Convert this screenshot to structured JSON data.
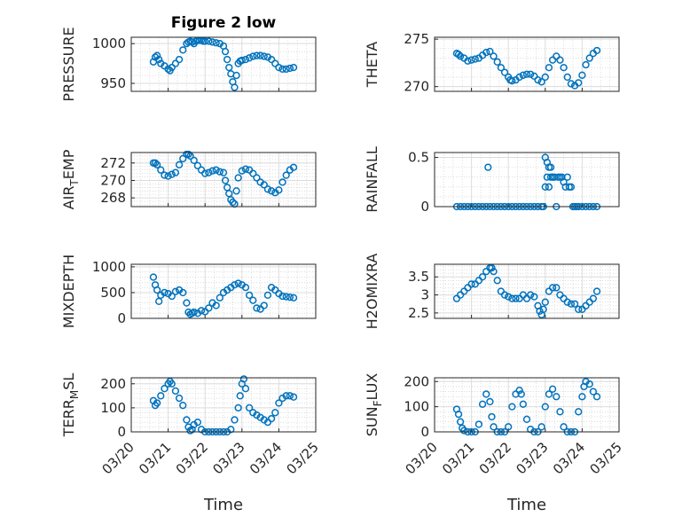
{
  "figure": {
    "title": "Figure 2 low",
    "xlabel": "Time",
    "marker_color": "#0072BD",
    "grid": true,
    "x_range": [
      "03/20",
      "03/25"
    ],
    "x_ticks": [
      "03/20",
      "03/21",
      "03/22",
      "03/23",
      "03/24",
      "03/25"
    ]
  },
  "chart_data": [
    {
      "type": "scatter",
      "ylabel": "PRESSURE",
      "title": "Figure 2 low",
      "ylim": [
        940,
        1008
      ],
      "yticks": [
        950,
        1000
      ],
      "x": [
        0.6,
        0.65,
        0.7,
        0.75,
        0.8,
        0.9,
        1.0,
        1.05,
        1.1,
        1.2,
        1.3,
        1.4,
        1.5,
        1.55,
        1.6,
        1.65,
        1.7,
        1.75,
        1.8,
        1.85,
        1.9,
        1.95,
        2.0,
        2.1,
        2.2,
        2.3,
        2.4,
        2.5,
        2.55,
        2.6,
        2.65,
        2.7,
        2.75,
        2.8,
        2.85,
        2.9,
        2.95,
        3.0,
        3.1,
        3.2,
        3.3,
        3.4,
        3.5,
        3.6,
        3.7,
        3.8,
        3.9,
        4.0,
        4.1,
        4.2,
        4.3,
        4.4
      ],
      "y": [
        977,
        983,
        985,
        980,
        975,
        972,
        968,
        966,
        970,
        975,
        980,
        992,
        1000,
        1002,
        1003,
        1002,
        1000,
        1003,
        1004,
        1004,
        1004,
        1003,
        1003,
        1003,
        1002,
        1001,
        1000,
        997,
        990,
        980,
        970,
        962,
        952,
        945,
        960,
        975,
        978,
        979,
        980,
        982,
        984,
        985,
        985,
        984,
        983,
        980,
        975,
        970,
        968,
        968,
        969,
        970
      ]
    },
    {
      "type": "scatter",
      "ylabel": "THETA",
      "ylim": [
        269.5,
        275.2
      ],
      "yticks": [
        270,
        275
      ],
      "x": [
        0.6,
        0.65,
        0.7,
        0.8,
        0.9,
        1.0,
        1.1,
        1.2,
        1.3,
        1.4,
        1.5,
        1.6,
        1.7,
        1.8,
        1.9,
        2.0,
        2.05,
        2.1,
        2.2,
        2.3,
        2.4,
        2.5,
        2.6,
        2.7,
        2.8,
        2.9,
        3.0,
        3.1,
        3.2,
        3.3,
        3.4,
        3.5,
        3.6,
        3.7,
        3.8,
        3.9,
        4.0,
        4.1,
        4.2,
        4.3,
        4.4
      ],
      "y": [
        273.5,
        273.4,
        273.2,
        273.0,
        272.7,
        272.8,
        272.9,
        273.0,
        273.3,
        273.6,
        273.7,
        273.2,
        272.6,
        272.0,
        271.5,
        271.0,
        270.7,
        270.6,
        270.7,
        271.0,
        271.2,
        271.3,
        271.3,
        271.1,
        270.7,
        270.5,
        271.0,
        272.0,
        272.8,
        273.2,
        272.8,
        272.0,
        271.0,
        270.3,
        270.1,
        270.4,
        271.2,
        272.3,
        273.0,
        273.5,
        273.8
      ]
    },
    {
      "type": "scatter",
      "ylabel": "AIR_TEMP",
      "ylim": [
        267,
        273.2
      ],
      "yticks": [
        268,
        270,
        272
      ],
      "x": [
        0.6,
        0.65,
        0.7,
        0.8,
        0.9,
        1.0,
        1.1,
        1.2,
        1.3,
        1.4,
        1.5,
        1.55,
        1.6,
        1.7,
        1.8,
        1.9,
        2.0,
        2.1,
        2.2,
        2.3,
        2.4,
        2.5,
        2.55,
        2.6,
        2.65,
        2.7,
        2.75,
        2.8,
        2.85,
        2.9,
        3.0,
        3.1,
        3.2,
        3.3,
        3.4,
        3.5,
        3.6,
        3.7,
        3.8,
        3.9,
        4.0,
        4.1,
        4.2,
        4.3,
        4.4
      ],
      "y": [
        272.0,
        272.0,
        271.8,
        271.2,
        270.6,
        270.5,
        270.7,
        270.9,
        271.8,
        272.5,
        273.0,
        273.0,
        272.8,
        272.3,
        271.7,
        271.2,
        270.8,
        270.9,
        271.1,
        271.2,
        271.0,
        270.9,
        270.0,
        269.2,
        268.5,
        267.8,
        267.5,
        267.3,
        268.8,
        270.3,
        271.1,
        271.3,
        271.2,
        270.8,
        270.3,
        269.8,
        269.5,
        269.0,
        268.8,
        268.6,
        268.9,
        269.8,
        270.6,
        271.2,
        271.5
      ]
    },
    {
      "type": "scatter",
      "ylabel": "RAINFALL",
      "ylim": [
        0,
        0.55
      ],
      "yticks": [
        0,
        0.5
      ],
      "series_note": "",
      "x": [
        0.6,
        0.7,
        0.8,
        0.9,
        1.0,
        1.1,
        1.2,
        1.3,
        1.4,
        1.45,
        1.5,
        1.6,
        1.7,
        1.8,
        1.9,
        2.0,
        2.1,
        2.2,
        2.3,
        2.4,
        2.5,
        2.6,
        2.7,
        2.8,
        2.9,
        2.95,
        3.0,
        3.0,
        3.05,
        3.05,
        3.1,
        3.1,
        3.15,
        3.15,
        3.2,
        3.2,
        3.25,
        3.3,
        3.35,
        3.4,
        3.45,
        3.5,
        3.55,
        3.6,
        3.65,
        3.7,
        3.75,
        3.8,
        3.85,
        3.9,
        4.0,
        4.1,
        4.2,
        4.3,
        4.4
      ],
      "y": [
        0,
        0,
        0,
        0,
        0,
        0,
        0,
        0,
        0,
        0.4,
        0,
        0,
        0,
        0,
        0,
        0,
        0,
        0,
        0,
        0,
        0,
        0,
        0,
        0,
        0,
        0,
        0.2,
        0.5,
        0.3,
        0.45,
        0.4,
        0.2,
        0.3,
        0.4,
        0.3,
        0.3,
        0.3,
        0,
        0.3,
        0.3,
        0.3,
        0.25,
        0.2,
        0.3,
        0.2,
        0.2,
        0,
        0,
        0,
        0,
        0,
        0,
        0,
        0,
        0
      ]
    },
    {
      "type": "scatter",
      "ylabel": "MIXDEPTH",
      "ylim": [
        0,
        1050
      ],
      "yticks": [
        0,
        500,
        1000
      ],
      "x": [
        0.6,
        0.65,
        0.7,
        0.75,
        0.8,
        0.9,
        1.0,
        1.1,
        1.2,
        1.3,
        1.4,
        1.5,
        1.55,
        1.6,
        1.65,
        1.7,
        1.8,
        1.9,
        2.0,
        2.1,
        2.2,
        2.3,
        2.4,
        2.5,
        2.6,
        2.7,
        2.8,
        2.9,
        3.0,
        3.1,
        3.2,
        3.3,
        3.4,
        3.5,
        3.6,
        3.7,
        3.8,
        3.9,
        4.0,
        4.1,
        4.2,
        4.3,
        4.4
      ],
      "y": [
        800,
        650,
        550,
        330,
        450,
        500,
        480,
        430,
        520,
        550,
        500,
        300,
        120,
        80,
        100,
        120,
        100,
        150,
        130,
        200,
        300,
        250,
        400,
        500,
        550,
        600,
        650,
        680,
        650,
        600,
        450,
        350,
        200,
        180,
        250,
        450,
        600,
        550,
        480,
        430,
        420,
        410,
        400
      ]
    },
    {
      "type": "scatter",
      "ylabel": "H2OMIXRA",
      "ylim": [
        2.35,
        3.85
      ],
      "yticks": [
        2.5,
        3,
        3.5
      ],
      "x": [
        0.6,
        0.7,
        0.8,
        0.9,
        1.0,
        1.1,
        1.2,
        1.3,
        1.4,
        1.5,
        1.55,
        1.6,
        1.7,
        1.8,
        1.9,
        2.0,
        2.1,
        2.2,
        2.3,
        2.4,
        2.5,
        2.6,
        2.7,
        2.8,
        2.85,
        2.9,
        2.95,
        3.0,
        3.1,
        3.2,
        3.3,
        3.4,
        3.5,
        3.6,
        3.7,
        3.8,
        3.9,
        4.0,
        4.1,
        4.2,
        4.3,
        4.4
      ],
      "y": [
        2.9,
        3.0,
        3.1,
        3.2,
        3.3,
        3.3,
        3.4,
        3.5,
        3.65,
        3.75,
        3.75,
        3.65,
        3.4,
        3.1,
        3.0,
        2.95,
        2.9,
        2.9,
        2.9,
        3.0,
        2.9,
        3.0,
        2.95,
        2.7,
        2.55,
        2.45,
        2.6,
        2.8,
        3.1,
        3.2,
        3.2,
        3.0,
        2.9,
        2.8,
        2.75,
        2.75,
        2.6,
        2.6,
        2.7,
        2.8,
        2.9,
        3.1
      ]
    },
    {
      "type": "scatter",
      "ylabel": "TERR_MSL",
      "ylim": [
        0,
        225
      ],
      "yticks": [
        0,
        100,
        200
      ],
      "x": [
        0.6,
        0.65,
        0.7,
        0.8,
        0.9,
        1.0,
        1.05,
        1.1,
        1.2,
        1.3,
        1.4,
        1.5,
        1.55,
        1.6,
        1.65,
        1.7,
        1.8,
        1.9,
        2.0,
        2.1,
        2.2,
        2.3,
        2.4,
        2.5,
        2.6,
        2.7,
        2.8,
        2.9,
        2.95,
        3.0,
        3.05,
        3.1,
        3.2,
        3.3,
        3.4,
        3.5,
        3.6,
        3.7,
        3.8,
        3.9,
        4.0,
        4.1,
        4.2,
        4.3,
        4.4
      ],
      "y": [
        130,
        110,
        120,
        150,
        180,
        200,
        210,
        200,
        170,
        140,
        110,
        50,
        20,
        5,
        10,
        30,
        40,
        10,
        0,
        0,
        0,
        0,
        0,
        0,
        0,
        10,
        50,
        100,
        150,
        200,
        220,
        180,
        100,
        80,
        70,
        60,
        50,
        40,
        55,
        80,
        120,
        140,
        150,
        150,
        145
      ]
    },
    {
      "type": "scatter",
      "ylabel": "SUN_FLUX",
      "ylim": [
        0,
        215
      ],
      "yticks": [
        0,
        100,
        200
      ],
      "x": [
        0.6,
        0.65,
        0.7,
        0.75,
        0.8,
        0.9,
        1.0,
        1.1,
        1.2,
        1.3,
        1.4,
        1.5,
        1.55,
        1.6,
        1.7,
        1.8,
        1.9,
        2.0,
        2.1,
        2.2,
        2.3,
        2.35,
        2.4,
        2.5,
        2.6,
        2.7,
        2.8,
        2.9,
        3.0,
        3.1,
        3.2,
        3.3,
        3.4,
        3.5,
        3.6,
        3.7,
        3.8,
        3.9,
        4.0,
        4.05,
        4.1,
        4.2,
        4.3,
        4.4
      ],
      "y": [
        90,
        70,
        40,
        15,
        5,
        0,
        0,
        0,
        30,
        110,
        150,
        120,
        60,
        20,
        0,
        0,
        0,
        20,
        100,
        150,
        165,
        150,
        110,
        50,
        10,
        0,
        0,
        20,
        100,
        150,
        170,
        140,
        80,
        20,
        0,
        0,
        0,
        80,
        140,
        180,
        200,
        190,
        160,
        140
      ]
    }
  ]
}
